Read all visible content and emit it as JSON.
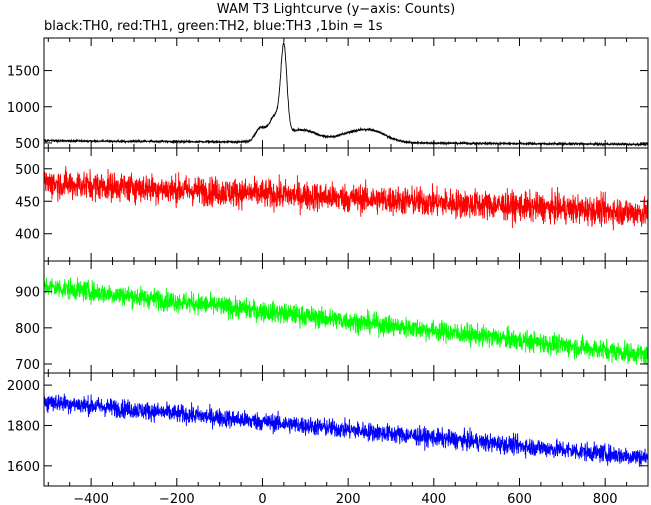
{
  "chart_data": {
    "type": "line",
    "title": "WAM T3 Lightcurve (y−axis: Counts)",
    "subtitle": "black:TH0, red:TH1, green:TH2, blue:TH3 ,1bin = 1s",
    "xlabel": "",
    "ylabel": "",
    "xlim": [
      -510,
      900
    ],
    "x_ticks": [
      -400,
      -200,
      0,
      200,
      400,
      600,
      800
    ],
    "x_tick_labels": [
      "−400",
      "−200",
      "0",
      "200",
      "400",
      "600",
      "800"
    ],
    "grid": false,
    "panels": [
      {
        "series_name": "TH0",
        "color": "#000000",
        "ylim": [
          430,
          1950
        ],
        "y_ticks": [
          500,
          1000,
          1500
        ],
        "y_tick_labels": [
          "500",
          "1000",
          "1500"
        ],
        "baseline_start": 530,
        "baseline_end": 480,
        "noise_amplitude": 14,
        "features": [
          {
            "center": -5,
            "width": 12,
            "amplitude": 180
          },
          {
            "center": 30,
            "width": 14,
            "amplitude": 320
          },
          {
            "center": 50,
            "width": 7,
            "amplitude": 1150
          },
          {
            "center": 90,
            "width": 40,
            "amplitude": 170
          },
          {
            "center": 200,
            "width": 30,
            "amplitude": 90
          },
          {
            "center": 255,
            "width": 35,
            "amplitude": 160
          }
        ]
      },
      {
        "series_name": "TH1",
        "color": "#ff0000",
        "ylim": [
          358,
          532
        ],
        "y_ticks": [
          400,
          450,
          500
        ],
        "y_tick_labels": [
          "400",
          "450",
          "500"
        ],
        "baseline_start": 478,
        "baseline_end": 432,
        "noise_amplitude": 22,
        "features": []
      },
      {
        "series_name": "TH2",
        "color": "#00ff00",
        "ylim": [
          675,
          985
        ],
        "y_ticks": [
          700,
          800,
          900
        ],
        "y_tick_labels": [
          "700",
          "800",
          "900"
        ],
        "baseline_start": 915,
        "baseline_end": 725,
        "noise_amplitude": 28,
        "features": []
      },
      {
        "series_name": "TH3",
        "color": "#0000ff",
        "ylim": [
          1500,
          2060
        ],
        "y_ticks": [
          1600,
          1800,
          2000
        ],
        "y_tick_labels": [
          "1600",
          "1800",
          "2000"
        ],
        "baseline_start": 1920,
        "baseline_end": 1640,
        "noise_amplitude": 45,
        "features": []
      }
    ]
  }
}
